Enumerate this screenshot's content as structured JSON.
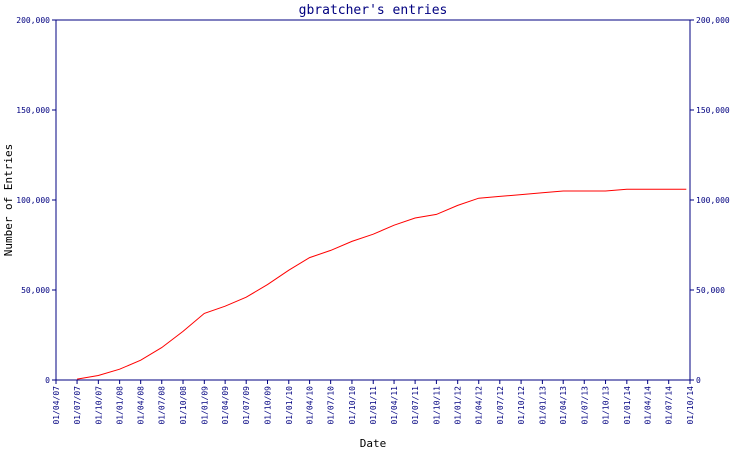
{
  "chart_data": {
    "type": "line",
    "title": "gbratcher's entries",
    "xlabel": "Date",
    "ylabel": "Number of Entries",
    "ylim": [
      0,
      200000
    ],
    "y_ticks": [
      0,
      50000,
      100000,
      150000,
      200000
    ],
    "y_tick_labels": [
      "0",
      "50,000",
      "100,000",
      "150,000",
      "200,000"
    ],
    "x_ticks": [
      "01/04/07",
      "01/07/07",
      "01/10/07",
      "01/01/08",
      "01/04/08",
      "01/07/08",
      "01/10/08",
      "01/01/09",
      "01/04/09",
      "01/07/09",
      "01/10/09",
      "01/01/10",
      "01/04/10",
      "01/07/10",
      "01/10/10",
      "01/01/11",
      "01/04/11",
      "01/07/11",
      "01/10/11",
      "01/01/12",
      "01/04/12",
      "01/07/12",
      "01/10/12",
      "01/01/13",
      "01/04/13",
      "01/07/13",
      "01/10/13",
      "01/01/14",
      "01/04/14",
      "01/07/14",
      "01/10/14"
    ],
    "grid": false,
    "colors": {
      "axis": "#000080",
      "line": "#ff0000"
    },
    "series": [
      {
        "x": [
          "2007-07-01",
          "2007-10-01",
          "2008-01-01",
          "2008-04-01",
          "2008-07-01",
          "2008-10-01",
          "2009-01-01",
          "2009-04-01",
          "2009-07-01",
          "2009-10-01",
          "2010-01-01",
          "2010-04-01",
          "2010-07-01",
          "2010-10-01",
          "2011-01-01",
          "2011-04-01",
          "2011-07-01",
          "2011-10-01",
          "2012-01-01",
          "2012-04-01",
          "2012-07-01",
          "2012-10-01",
          "2013-01-01",
          "2013-04-01",
          "2013-07-01",
          "2013-10-01",
          "2014-01-01",
          "2014-04-01",
          "2014-07-01",
          "2014-09-15"
        ],
        "values": [
          500,
          2500,
          6000,
          11000,
          18000,
          27000,
          37000,
          41000,
          46000,
          53000,
          61000,
          68000,
          72000,
          77000,
          81000,
          86000,
          90000,
          92000,
          97000,
          101000,
          102000,
          103000,
          104000,
          105000,
          105000,
          105000,
          106000,
          106000,
          106000,
          106000
        ]
      }
    ]
  }
}
